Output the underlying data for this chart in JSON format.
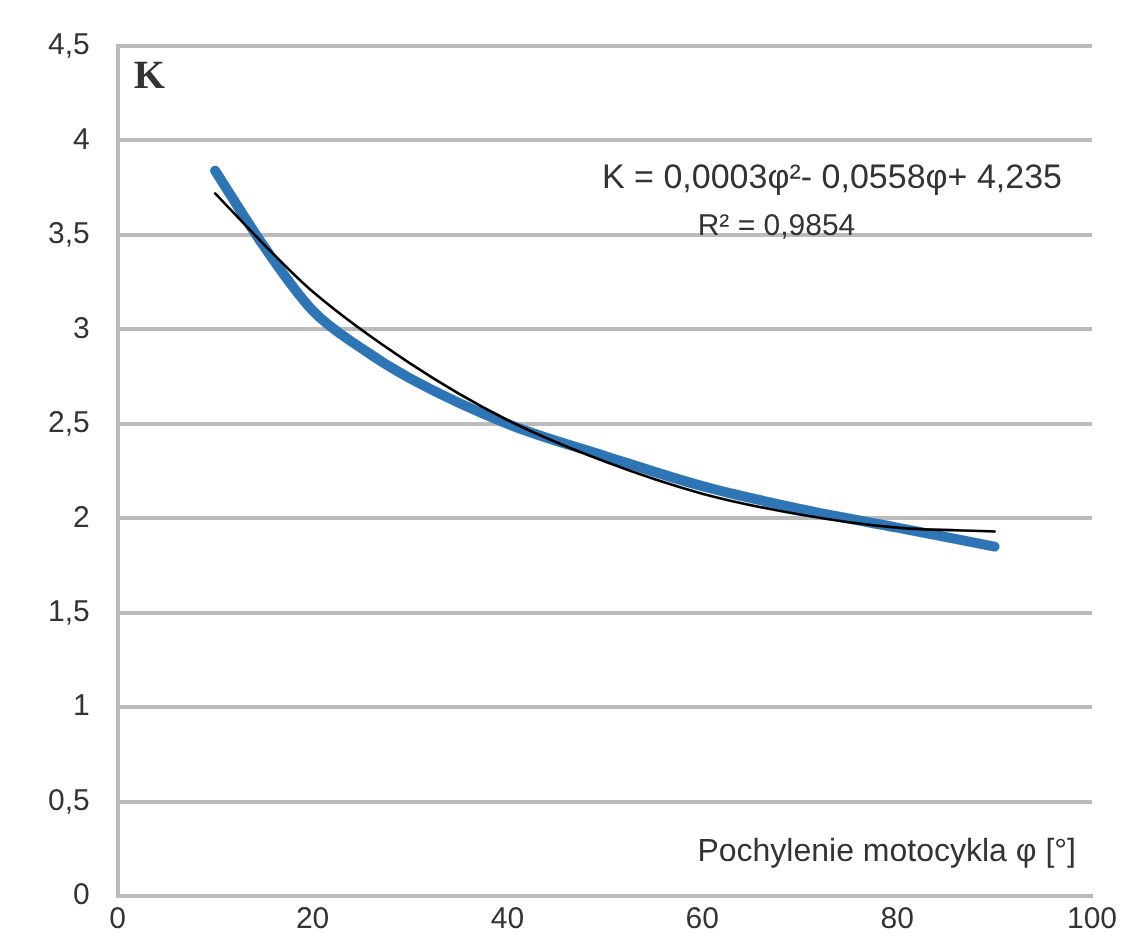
{
  "chart_data": {
    "type": "line",
    "xlabel": "Pochylenie motocykla φ [°]",
    "ylabel": "K",
    "annotations": [
      "K = 0,0003φ²- 0,0558φ+ 4,235",
      "R² = 0,9854"
    ],
    "series": [
      {
        "color": "#2e75b6",
        "x": [
          10,
          15,
          20,
          25,
          30,
          40,
          50,
          60,
          70,
          80,
          90
        ],
        "values": [
          3.84,
          3.44,
          3.1,
          2.9,
          2.74,
          2.5,
          2.33,
          2.17,
          2.05,
          1.95,
          1.85
        ]
      },
      {
        "color": "#000000",
        "x": [
          10,
          15,
          20,
          30,
          40,
          50,
          60,
          70,
          80,
          90
        ],
        "values": [
          3.72,
          3.45,
          3.2,
          2.82,
          2.52,
          2.3,
          2.13,
          2.02,
          1.95,
          1.93
        ]
      }
    ],
    "xlim": [
      0,
      100
    ],
    "xticks": [
      0,
      20,
      40,
      60,
      80,
      100
    ],
    "ylim": [
      0,
      4.5
    ],
    "yticks": [
      0,
      {
        "value": 0.5,
        "label": "0,5"
      },
      1,
      {
        "value": 1.5,
        "label": "1,5"
      },
      2,
      {
        "value": 2.5,
        "label": "2,5"
      },
      3,
      {
        "value": 3.5,
        "label": "3,5"
      },
      4,
      {
        "value": 4.5,
        "label": "4,5"
      }
    ],
    "grid": "y",
    "legend": false,
    "marker": "none",
    "line_style": "solid"
  }
}
